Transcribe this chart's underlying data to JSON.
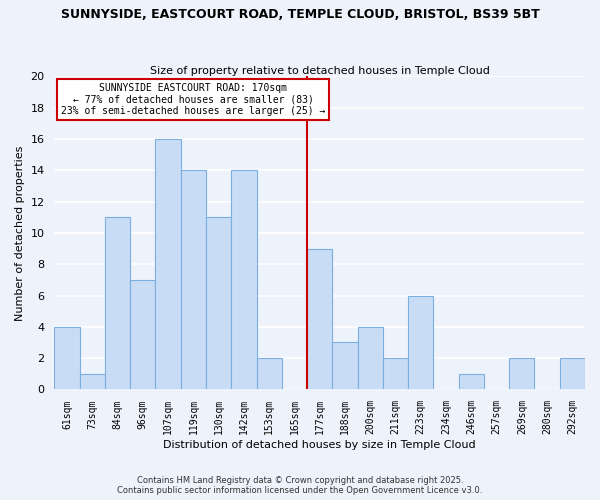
{
  "title1": "SUNNYSIDE, EASTCOURT ROAD, TEMPLE CLOUD, BRISTOL, BS39 5BT",
  "title2": "Size of property relative to detached houses in Temple Cloud",
  "xlabel": "Distribution of detached houses by size in Temple Cloud",
  "ylabel": "Number of detached properties",
  "bar_labels": [
    "61sqm",
    "73sqm",
    "84sqm",
    "96sqm",
    "107sqm",
    "119sqm",
    "130sqm",
    "142sqm",
    "153sqm",
    "165sqm",
    "177sqm",
    "188sqm",
    "200sqm",
    "211sqm",
    "223sqm",
    "234sqm",
    "246sqm",
    "257sqm",
    "269sqm",
    "280sqm",
    "292sqm"
  ],
  "bar_values": [
    4,
    1,
    11,
    7,
    16,
    14,
    11,
    14,
    2,
    0,
    9,
    3,
    4,
    2,
    6,
    0,
    1,
    0,
    2,
    0,
    2
  ],
  "bar_color": "#c9dcf5",
  "bar_edgecolor": "#7ab0e0",
  "bg_color": "#eef2fb",
  "grid_color": "#ffffff",
  "ylim": [
    0,
    20
  ],
  "yticks": [
    0,
    2,
    4,
    6,
    8,
    10,
    12,
    14,
    16,
    18,
    20
  ],
  "vline_x_index": 9,
  "vline_color": "#cc0000",
  "annotation_title": "SUNNYSIDE EASTCOURT ROAD: 170sqm",
  "annotation_line1": "← 77% of detached houses are smaller (83)",
  "annotation_line2": "23% of semi-detached houses are larger (25) →",
  "annotation_box_color": "#ffffff",
  "annotation_box_edgecolor": "#cc0000",
  "footnote1": "Contains HM Land Registry data © Crown copyright and database right 2025.",
  "footnote2": "Contains public sector information licensed under the Open Government Licence v3.0."
}
